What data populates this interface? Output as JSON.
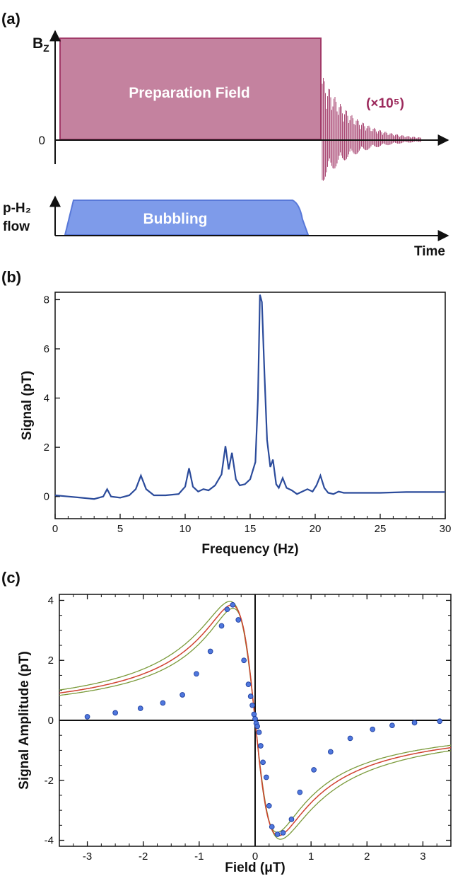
{
  "panels": {
    "a": {
      "label": "(a)",
      "bz_label": "B",
      "bz_sub": "Z",
      "zero_label": "0",
      "prep_label": "Preparation Field",
      "multiplier": "(×10⁵)",
      "flow_label_1": "p-H₂",
      "flow_label_2": "flow",
      "bubbling_label": "Bubbling",
      "time_label": "Time"
    },
    "b": {
      "label": "(b)"
    },
    "c": {
      "label": "(c)"
    }
  },
  "colors": {
    "prep_fill": "#c4829f",
    "prep_stroke": "#a23b69",
    "decay": "#9c2a5c",
    "multiplier": "#9c2a5c",
    "bubbling_fill": "#7e9bea",
    "bubbling_stroke": "#5878d8",
    "spectrum_line": "#2b4b9b",
    "point_fill": "#4f77dd",
    "point_stroke": "#1f3f9f",
    "fit_red": "#d04030",
    "fit_green": "#7a9a3a"
  },
  "chart_data": [
    {
      "type": "line",
      "xlabel": "Frequency (Hz)",
      "ylabel": "Signal (pT)",
      "xlim": [
        0,
        30
      ],
      "ylim": [
        -0.9,
        8.3
      ],
      "xticks": [
        0,
        5,
        10,
        15,
        20,
        25,
        30
      ],
      "yticks": [
        0,
        2,
        4,
        6,
        8
      ],
      "grid": false,
      "series": [
        {
          "x": [
            0,
            1,
            2,
            3,
            3.7,
            4,
            4.3,
            5,
            5.7,
            6.2,
            6.6,
            7.0,
            7.6,
            8.5,
            9.5,
            10.0,
            10.3,
            10.6,
            11.0,
            11.4,
            11.8,
            12.3,
            12.8,
            13.1,
            13.35,
            13.6,
            13.9,
            14.2,
            14.6,
            15.0,
            15.4,
            15.6,
            15.75,
            15.9,
            16.1,
            16.3,
            16.55,
            16.75,
            17.0,
            17.2,
            17.5,
            17.8,
            18.2,
            18.6,
            19.0,
            19.4,
            19.8,
            20.1,
            20.4,
            20.7,
            21.0,
            21.4,
            21.8,
            22.2,
            23,
            25,
            27,
            30
          ],
          "y": [
            0.05,
            0.0,
            -0.05,
            -0.1,
            0.0,
            0.3,
            0.0,
            -0.05,
            0.05,
            0.3,
            0.85,
            0.3,
            0.05,
            0.05,
            0.1,
            0.4,
            1.15,
            0.4,
            0.2,
            0.3,
            0.25,
            0.45,
            0.9,
            2.05,
            1.1,
            1.78,
            0.7,
            0.45,
            0.5,
            0.7,
            1.4,
            4.0,
            8.2,
            7.9,
            5.0,
            2.3,
            1.2,
            1.5,
            0.5,
            0.35,
            0.75,
            0.35,
            0.25,
            0.1,
            0.2,
            0.3,
            0.2,
            0.45,
            0.85,
            0.35,
            0.15,
            0.1,
            0.2,
            0.15,
            0.15,
            0.15,
            0.18,
            0.18
          ]
        }
      ]
    },
    {
      "type": "scatter",
      "xlabel": "Field (μT)",
      "ylabel": "Signal Amplitude (pT)",
      "xlim": [
        -3.5,
        3.5
      ],
      "ylim": [
        -4.2,
        4.2
      ],
      "xticks": [
        -3,
        -2,
        -1,
        0,
        1,
        2,
        3
      ],
      "yticks": [
        -4,
        -2,
        0,
        2,
        4
      ],
      "grid": false,
      "series": [
        {
          "name": "",
          "x": [
            -3.0,
            -2.5,
            -2.05,
            -1.65,
            -1.3,
            -1.05,
            -0.8,
            -0.6,
            -0.5,
            -0.4,
            -0.3,
            -0.2,
            -0.12,
            -0.08,
            -0.05,
            -0.02,
            0.0,
            0.02,
            0.04,
            0.07,
            0.1,
            0.14,
            0.2,
            0.25,
            0.3,
            0.4,
            0.5,
            0.65,
            0.8,
            1.05,
            1.35,
            1.7,
            2.1,
            2.45,
            2.85,
            3.3
          ],
          "y": [
            0.12,
            0.25,
            0.4,
            0.58,
            0.85,
            1.55,
            2.3,
            3.15,
            3.7,
            3.85,
            3.35,
            2.0,
            1.2,
            0.8,
            0.5,
            0.2,
            0.05,
            -0.1,
            -0.2,
            -0.4,
            -0.85,
            -1.4,
            -1.9,
            -2.85,
            -3.55,
            -3.8,
            -3.75,
            -3.3,
            -2.4,
            -1.65,
            -1.05,
            -0.6,
            -0.3,
            -0.17,
            -0.08,
            -0.03
          ]
        }
      ],
      "fit": {
        "amplitude": 3.85,
        "width": 0.42
      }
    }
  ]
}
